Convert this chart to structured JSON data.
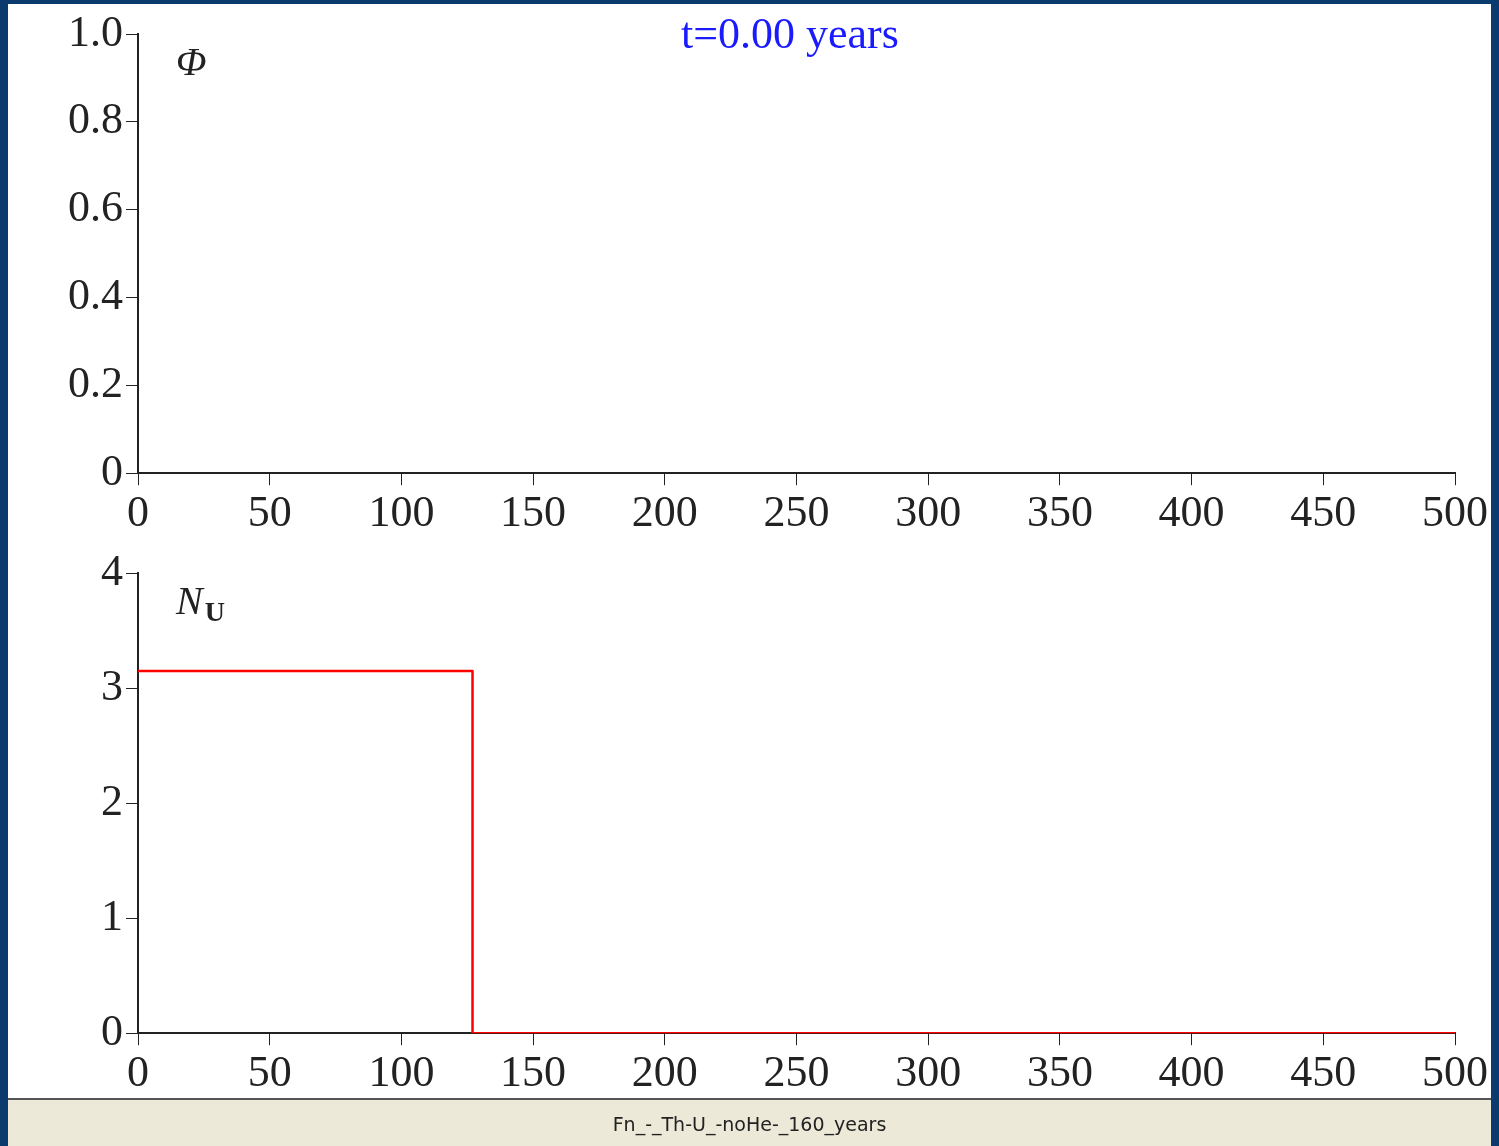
{
  "chart_data": [
    {
      "type": "line",
      "title": "t=0.00 years",
      "ylabel": "Φ",
      "xlim": [
        0,
        500
      ],
      "xticks": [
        0,
        50,
        100,
        150,
        200,
        250,
        300,
        350,
        400,
        450,
        500
      ],
      "ylim": [
        0,
        1
      ],
      "yticks": [
        0,
        0.2,
        0.4,
        0.6,
        0.8,
        {
          "value": 1,
          "label": "1.0"
        }
      ],
      "grid": false,
      "legend": false
    },
    {
      "type": "line",
      "ylabel": "N$_{U}$",
      "x": [
        0,
        127,
        127,
        500
      ],
      "series": [
        {
          "color": "#ff0000",
          "values": [
            3.15,
            3.15,
            0,
            0
          ]
        }
      ],
      "xlim": [
        0,
        500
      ],
      "xticks": [
        0,
        50,
        100,
        150,
        200,
        250,
        300,
        350,
        400,
        450,
        500
      ],
      "ylim": [
        0,
        4
      ],
      "yticks": [
        0,
        1,
        2,
        3,
        4
      ],
      "grid": false,
      "legend": false,
      "marker": "none",
      "annotations": [
        "Fn_-_Th-U_-noHe-_160_years"
      ]
    }
  ]
}
